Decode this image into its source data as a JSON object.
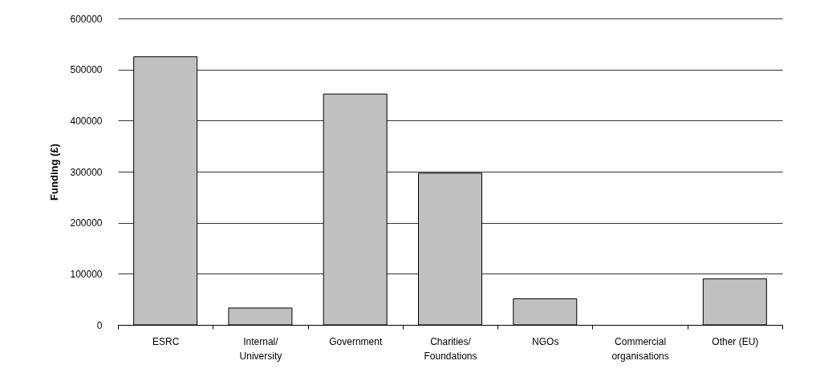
{
  "chart_data": {
    "type": "bar",
    "ylabel": "Funding (£)",
    "categories": [
      "ESRC",
      "Internal/\nUniversity",
      "Government",
      "Charities/\nFoundations",
      "NGOs",
      "Commercial\norganisations",
      "Other (EU)"
    ],
    "values": [
      525000,
      33000,
      452000,
      297000,
      51000,
      0,
      90000
    ],
    "color": "#c0c0c0",
    "ylim": [
      0,
      600000
    ],
    "yticks": [
      0,
      100000,
      200000,
      300000,
      400000,
      500000,
      600000
    ],
    "grid": "y"
  }
}
